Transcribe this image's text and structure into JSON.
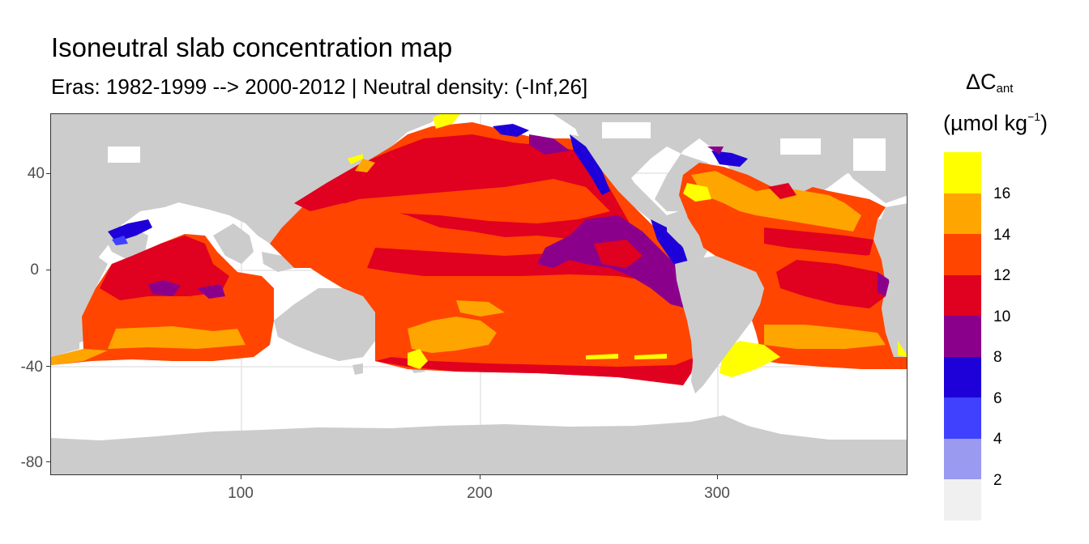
{
  "title": "Isoneutral slab concentration map",
  "subtitle": "Eras: 1982-1999 --> 2000-2012 | Neutral density: (-Inf,26]",
  "axes": {
    "x_ticks": [
      "100",
      "200",
      "300"
    ],
    "y_ticks": [
      "40",
      "0",
      "-40",
      "-80"
    ]
  },
  "legend": {
    "title_symbol": "ΔC",
    "title_subscript": "ant",
    "unit_main": "(µmol kg",
    "unit_sup": "−1",
    "unit_close": ")",
    "labels": [
      "16",
      "14",
      "12",
      "10",
      "8",
      "6",
      "4",
      "2"
    ],
    "colors": [
      "#ffff00",
      "#ffa500",
      "#ff4500",
      "#e00020",
      "#8b008b",
      "#1e00d8",
      "#4040ff",
      "#9a9af0",
      "#f0f0f0"
    ]
  },
  "map_colors": {
    "land": "#cccccc",
    "no_data": "#ffffff"
  },
  "chart_data": {
    "type": "heatmap",
    "title": "Isoneutral slab concentration map",
    "subtitle": "Eras: 1982-1999 --> 2000-2012 | Neutral density: (-Inf,26]",
    "xlabel": "",
    "ylabel": "",
    "xlim": [
      20,
      380
    ],
    "ylim": [
      -85,
      65
    ],
    "x_ticks": [
      100,
      200,
      300
    ],
    "y_ticks": [
      40,
      0,
      -40,
      -80
    ],
    "color_breaks": [
      2,
      4,
      6,
      8,
      10,
      12,
      14,
      16
    ],
    "color_scale_unit": "µmol kg−1",
    "legend_position": "right"
  }
}
